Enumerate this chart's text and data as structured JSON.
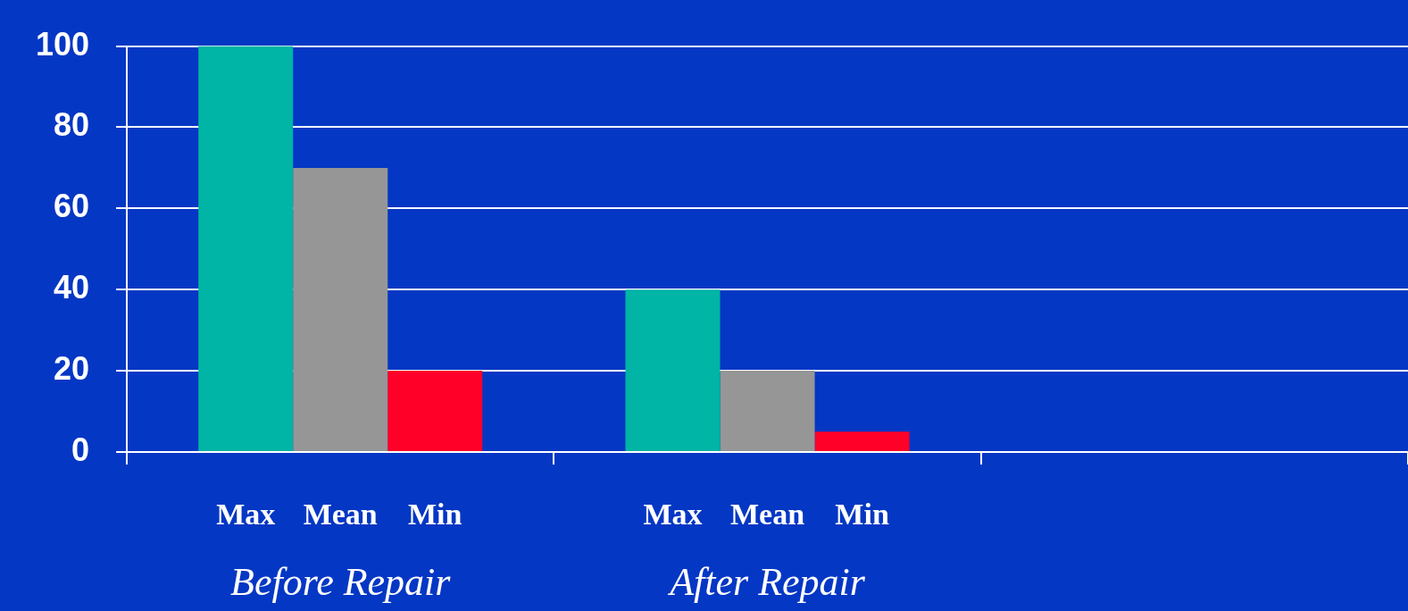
{
  "chart_data": {
    "type": "bar",
    "categories": [
      "Before Repair",
      "After Repair",
      null
    ],
    "series": [
      {
        "name": "Max",
        "color": "#00b4a6",
        "values": [
          100,
          40,
          null
        ]
      },
      {
        "name": "Mean",
        "color": "#969696",
        "values": [
          70,
          20,
          null
        ]
      },
      {
        "name": "Min",
        "color": "#ff0029",
        "values": [
          20,
          5,
          null
        ]
      }
    ],
    "ylim": [
      0,
      100
    ],
    "yticks": [
      0,
      20,
      40,
      60,
      80,
      100
    ],
    "grid": "y",
    "legend": false
  }
}
